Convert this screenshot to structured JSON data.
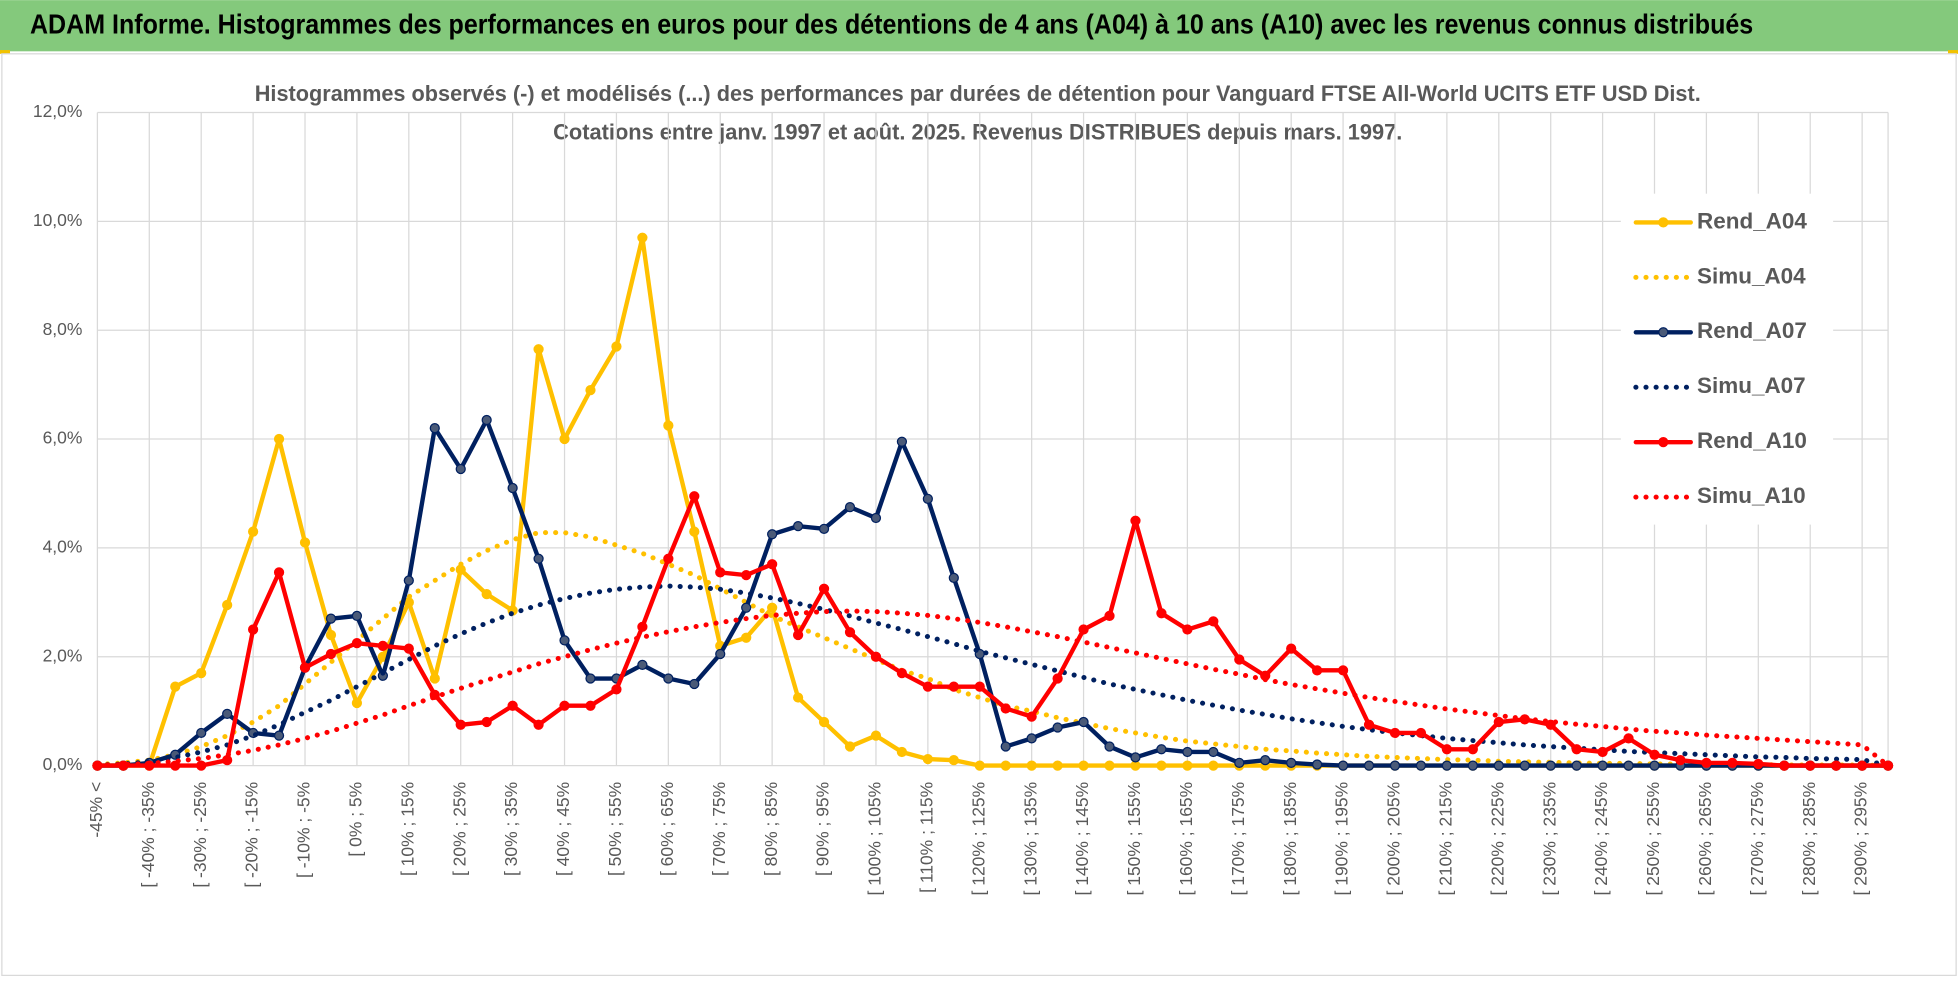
{
  "header": {
    "title": "ADAM Informe. Histogrammes des performances en euros pour des détentions de 4 ans (A04) à 10 ans (A10) avec les revenus connus distribués"
  },
  "chart_data": {
    "type": "line",
    "title": "Histogrammes observés (-) et modélisés (...) des performances par durées de détention pour Vanguard FTSE All-World UCITS ETF USD Dist.",
    "subtitle": "Cotations entre janv. 1997 et août. 2025. Revenus DISTRIBUES depuis mars. 1997.",
    "categories": [
      "-45% <",
      null,
      "[ -40% ; -35%",
      null,
      "[ -30% ; -25%",
      null,
      "[ -20% ; -15%",
      null,
      "[ -10% ; -5%",
      null,
      "[ 0% ; 5%",
      null,
      "[ 10% ; 15%",
      null,
      "[ 20% ; 25%",
      null,
      "[ 30% ; 35%",
      null,
      "[ 40% ; 45%",
      null,
      "[ 50% ; 55%",
      null,
      "[ 60% ; 65%",
      null,
      "[ 70% ; 75%",
      null,
      "[ 80% ; 85%",
      null,
      "[ 90% ; 95%",
      null,
      "[ 100% ; 105%",
      null,
      "[ 110% ; 115%",
      null,
      "[ 120% ; 125%",
      null,
      "[ 130% ; 135%",
      null,
      "[ 140% ; 145%",
      null,
      "[ 150% ; 155%",
      null,
      "[ 160% ; 165%",
      null,
      "[ 170% ; 175%",
      null,
      "[ 180% ; 185%",
      null,
      "[ 190% ; 195%",
      null,
      "[ 200% ; 205%",
      null,
      "[ 210% ; 215%",
      null,
      "[ 220% ; 225%",
      null,
      "[ 230% ; 235%",
      null,
      "[ 240% ; 245%",
      null,
      "[ 250% ; 255%",
      null,
      "[ 260% ; 265%",
      null,
      "[ 270% ; 275%",
      null,
      "[ 280% ; 285%",
      null,
      "[ 290% ; 295%",
      null
    ],
    "ylim": [
      0,
      12
    ],
    "yticks": [
      {
        "value": 0,
        "label": "0,0%"
      },
      {
        "value": 2,
        "label": "2,0%"
      },
      {
        "value": 4,
        "label": "4,0%"
      },
      {
        "value": 6,
        "label": "6,0%"
      },
      {
        "value": 8,
        "label": "8,0%"
      },
      {
        "value": 10,
        "label": "10,0%"
      },
      {
        "value": 12,
        "label": "12,0%"
      }
    ],
    "grid": true,
    "legend": "right",
    "series": [
      {
        "name": "Rend_A04",
        "color": "#ffc000",
        "style": "solid",
        "marker": true,
        "values": [
          0,
          0,
          0,
          1.45,
          1.7,
          2.95,
          4.3,
          6.0,
          4.1,
          2.4,
          1.15,
          2.0,
          3.0,
          1.6,
          3.6,
          3.15,
          2.85,
          7.65,
          6.0,
          6.9,
          7.7,
          9.7,
          6.25,
          4.3,
          2.2,
          2.35,
          2.9,
          1.25,
          0.8,
          0.35,
          0.55,
          0.25,
          0.12,
          0.1,
          0,
          0,
          0,
          0,
          0,
          0,
          0,
          0,
          0,
          0,
          0,
          0,
          0,
          0,
          0,
          0,
          0,
          0,
          0,
          0,
          0,
          0,
          0,
          0,
          0,
          0,
          0,
          0,
          0,
          0,
          0,
          0,
          0,
          0,
          0,
          0
        ]
      },
      {
        "name": "Simu_A04",
        "color": "#ffc000",
        "style": "dotted",
        "marker": false,
        "values": [
          0.02,
          0.05,
          0.1,
          0.2,
          0.35,
          0.55,
          0.8,
          1.1,
          1.5,
          1.9,
          2.3,
          2.7,
          3.1,
          3.4,
          3.7,
          3.95,
          4.15,
          4.28,
          4.28,
          4.2,
          4.05,
          3.9,
          3.7,
          3.5,
          3.25,
          3.0,
          2.75,
          2.55,
          2.35,
          2.15,
          1.95,
          1.75,
          1.6,
          1.4,
          1.25,
          1.1,
          1.0,
          0.88,
          0.78,
          0.68,
          0.6,
          0.52,
          0.45,
          0.4,
          0.35,
          0.3,
          0.27,
          0.23,
          0.2,
          0.17,
          0.15,
          0.13,
          0.11,
          0.1,
          0.08,
          0.07,
          0.06,
          0.05,
          0.04,
          0.04,
          0.03,
          0.03,
          0.02,
          0.02,
          0.02,
          0.01,
          0.01,
          0.01,
          0.01,
          0
        ]
      },
      {
        "name": "Rend_A07",
        "color": "#002060",
        "style": "solid",
        "marker": true,
        "values": [
          0,
          0,
          0.05,
          0.2,
          0.6,
          0.95,
          0.6,
          0.55,
          1.8,
          2.7,
          2.75,
          1.65,
          3.4,
          6.2,
          5.45,
          6.35,
          5.1,
          3.8,
          2.3,
          1.6,
          1.6,
          1.85,
          1.6,
          1.5,
          2.05,
          2.9,
          4.25,
          4.4,
          4.35,
          4.75,
          4.55,
          5.95,
          4.9,
          3.45,
          2.05,
          0.35,
          0.5,
          0.7,
          0.8,
          0.35,
          0.15,
          0.3,
          0.25,
          0.25,
          0.05,
          0.1,
          0.05,
          0.02,
          0,
          0,
          0,
          0,
          0,
          0,
          0,
          0,
          0,
          0,
          0,
          0,
          0,
          0,
          0,
          0,
          0,
          0,
          0,
          0,
          0,
          0
        ]
      },
      {
        "name": "Simu_A07",
        "color": "#002060",
        "style": "dotted",
        "marker": false,
        "values": [
          0.01,
          0.03,
          0.07,
          0.15,
          0.25,
          0.38,
          0.55,
          0.75,
          0.98,
          1.2,
          1.45,
          1.7,
          1.95,
          2.2,
          2.42,
          2.62,
          2.8,
          2.95,
          3.07,
          3.17,
          3.24,
          3.28,
          3.3,
          3.28,
          3.24,
          3.17,
          3.08,
          2.98,
          2.87,
          2.75,
          2.62,
          2.5,
          2.37,
          2.24,
          2.1,
          1.98,
          1.86,
          1.74,
          1.62,
          1.5,
          1.4,
          1.3,
          1.2,
          1.11,
          1.02,
          0.94,
          0.86,
          0.79,
          0.72,
          0.66,
          0.6,
          0.55,
          0.5,
          0.46,
          0.42,
          0.38,
          0.35,
          0.32,
          0.29,
          0.26,
          0.24,
          0.22,
          0.2,
          0.18,
          0.16,
          0.15,
          0.13,
          0.12,
          0.11,
          0
        ]
      },
      {
        "name": "Rend_A10",
        "color": "#ff0000",
        "style": "solid",
        "marker": true,
        "values": [
          0,
          0,
          0,
          0,
          0,
          0.1,
          2.5,
          3.55,
          1.8,
          2.05,
          2.25,
          2.2,
          2.15,
          1.3,
          0.75,
          0.8,
          1.1,
          0.75,
          1.1,
          1.1,
          1.4,
          2.55,
          3.8,
          4.95,
          3.55,
          3.5,
          3.7,
          2.4,
          3.25,
          2.45,
          2.0,
          1.7,
          1.45,
          1.45,
          1.45,
          1.05,
          0.9,
          1.6,
          2.5,
          2.75,
          4.5,
          2.8,
          2.5,
          2.65,
          1.95,
          1.65,
          2.15,
          1.75,
          1.75,
          0.75,
          0.6,
          0.6,
          0.3,
          0.3,
          0.8,
          0.85,
          0.75,
          0.3,
          0.25,
          0.5,
          0.2,
          0.1,
          0.05,
          0.05,
          0.03,
          0,
          0,
          0,
          0,
          0
        ]
      },
      {
        "name": "Simu_A10",
        "color": "#ff0000",
        "style": "dotted",
        "marker": false,
        "values": [
          0.01,
          0.02,
          0.04,
          0.08,
          0.13,
          0.2,
          0.28,
          0.38,
          0.5,
          0.63,
          0.78,
          0.93,
          1.1,
          1.26,
          1.42,
          1.57,
          1.72,
          1.87,
          2.0,
          2.13,
          2.25,
          2.36,
          2.46,
          2.55,
          2.63,
          2.7,
          2.76,
          2.8,
          2.83,
          2.84,
          2.83,
          2.8,
          2.76,
          2.7,
          2.63,
          2.55,
          2.46,
          2.37,
          2.27,
          2.17,
          2.07,
          1.97,
          1.87,
          1.77,
          1.68,
          1.58,
          1.49,
          1.41,
          1.33,
          1.25,
          1.18,
          1.11,
          1.04,
          0.98,
          0.92,
          0.86,
          0.81,
          0.76,
          0.72,
          0.67,
          0.63,
          0.6,
          0.56,
          0.53,
          0.5,
          0.47,
          0.44,
          0.41,
          0.38,
          0
        ]
      }
    ]
  }
}
